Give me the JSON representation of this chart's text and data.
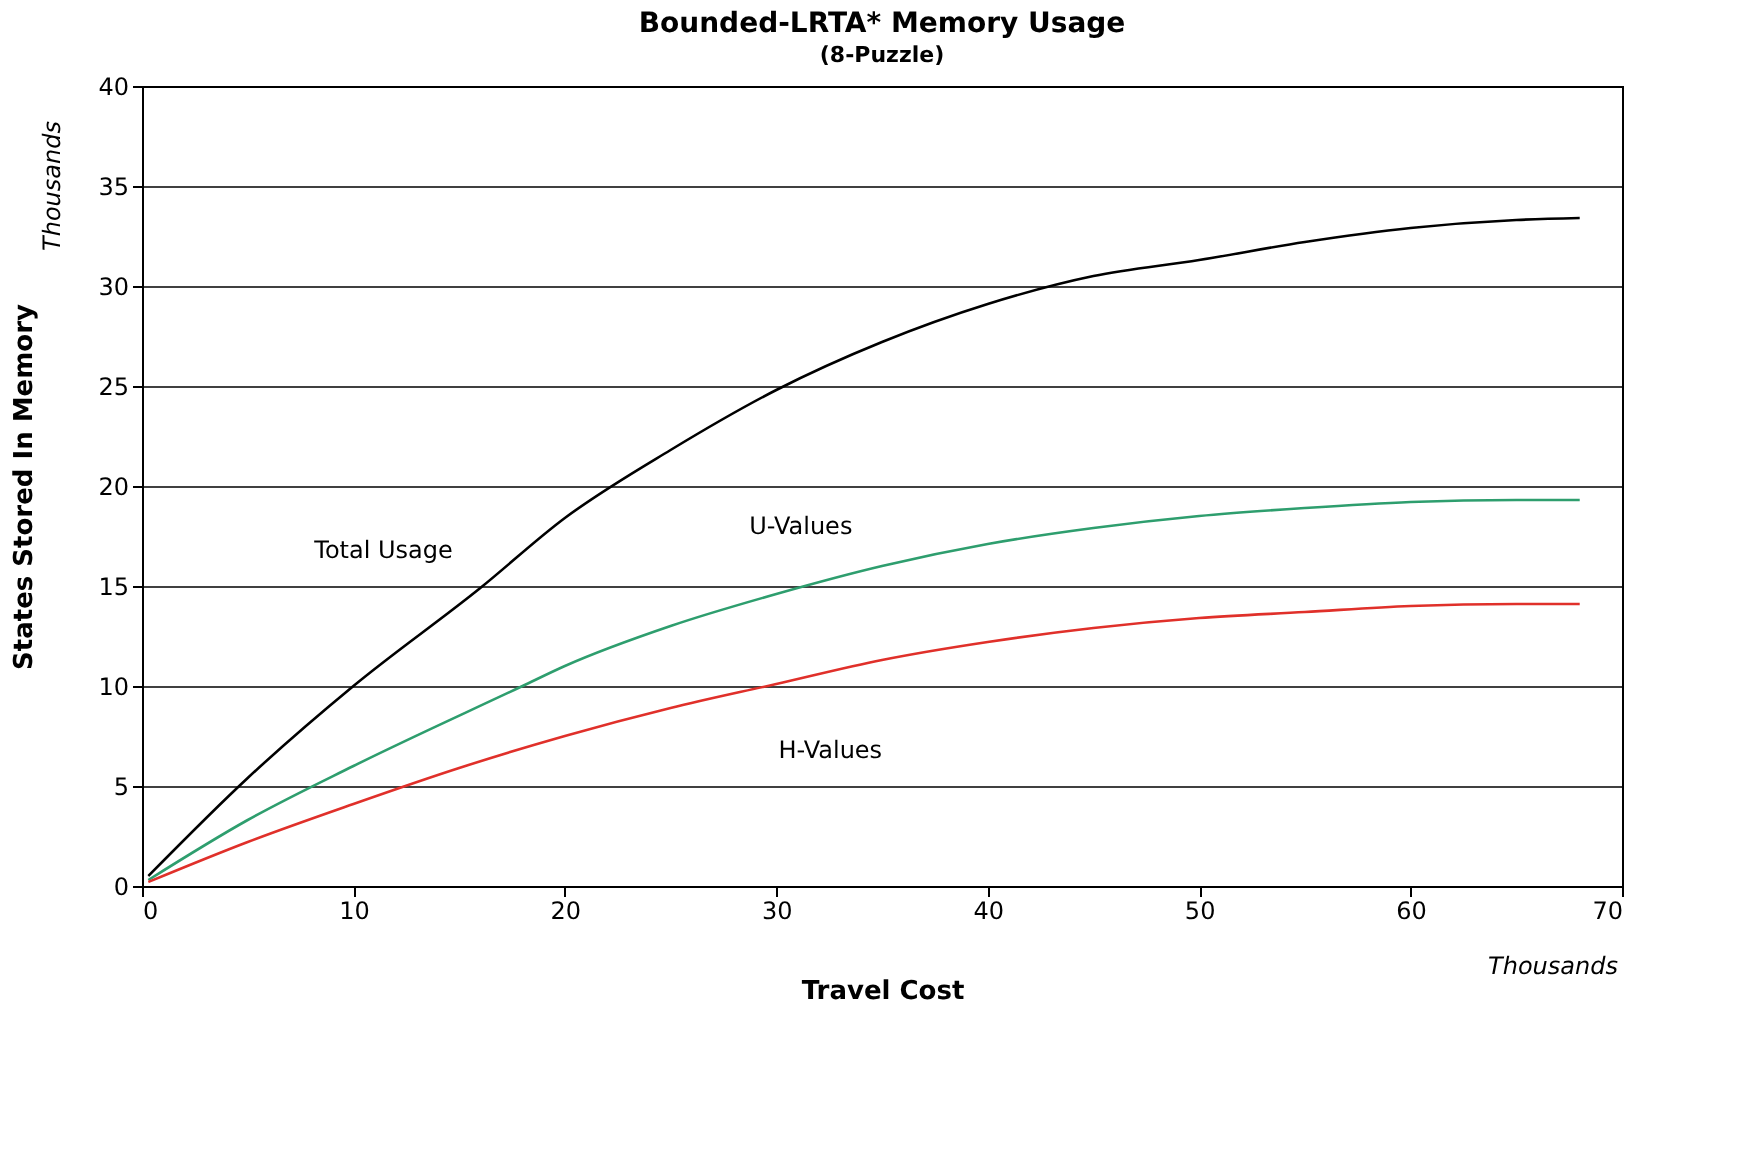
{
  "chart_data": {
    "type": "line",
    "title": "Bounded-LRTA* Memory Usage",
    "subtitle": "(8-Puzzle)",
    "xlabel": "Travel Cost",
    "ylabel": "States Stored In Memory",
    "xlim": [
      0,
      70
    ],
    "xticks": [
      0,
      10,
      20,
      30,
      40,
      50,
      60,
      70
    ],
    "ylim": [
      0,
      40
    ],
    "yticks": [
      0,
      5,
      10,
      15,
      20,
      25,
      30,
      35,
      40
    ],
    "grid": "y",
    "marker": "none",
    "line_style": "solid",
    "series": [
      {
        "color": "#000000",
        "x": [
          0.3,
          5,
          10,
          16,
          20,
          25,
          30,
          35,
          40,
          45,
          50,
          55,
          60,
          65,
          68
        ],
        "values": [
          0.5,
          5.4,
          10,
          14.9,
          18.4,
          21.8,
          24.8,
          27.2,
          29.1,
          30.5,
          31.3,
          32.2,
          32.9,
          33.3,
          33.4
        ]
      },
      {
        "color": "#2e9e6e",
        "x": [
          0.3,
          5,
          10,
          18,
          20,
          25,
          30,
          35,
          40,
          45,
          50,
          55,
          60,
          65,
          68
        ],
        "values": [
          0.3,
          3.3,
          6.0,
          10,
          11,
          13,
          14.6,
          16,
          17.1,
          17.9,
          18.5,
          18.9,
          19.2,
          19.3,
          19.3
        ]
      },
      {
        "color": "#e0302a",
        "x": [
          0.3,
          5,
          10,
          15,
          20,
          25,
          30,
          35,
          40,
          45,
          50,
          55,
          60,
          65,
          68
        ],
        "values": [
          0.2,
          2.2,
          4.1,
          5.9,
          7.5,
          8.9,
          10.1,
          11.3,
          12.2,
          12.9,
          13.4,
          13.7,
          14.0,
          14.1,
          14.1
        ]
      }
    ],
    "annotations": [
      "Total Usage",
      "U-Values",
      "H-Values",
      "Thousands",
      "Thousands"
    ]
  }
}
